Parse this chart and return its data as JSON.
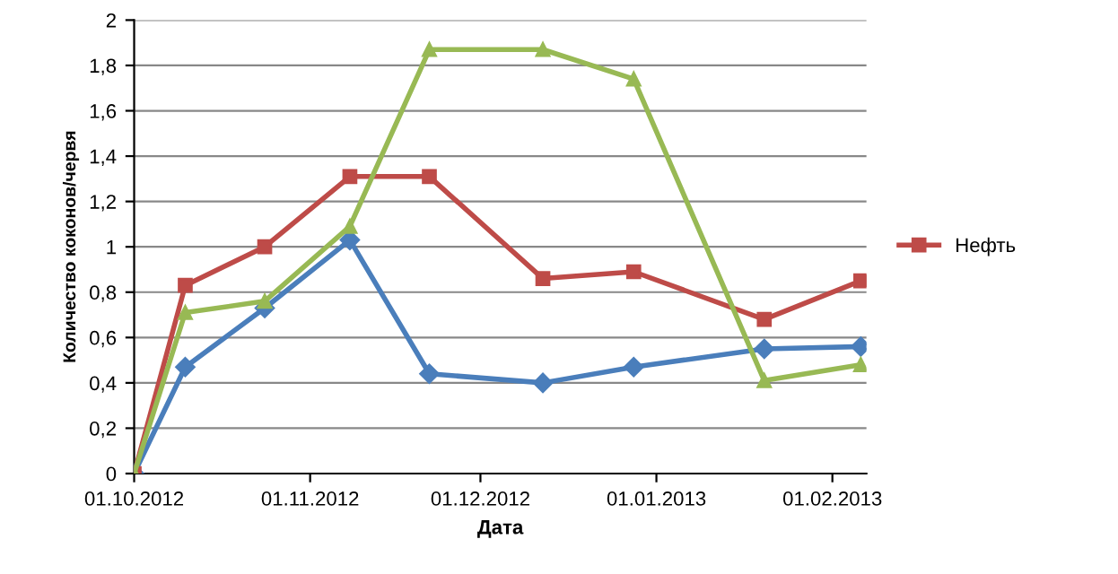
{
  "chart_data": {
    "type": "line",
    "xlabel": "Дата",
    "ylabel": "Количество коконов/червя",
    "x": [
      "2012-10-01",
      "2012-10-10",
      "2012-10-24",
      "2012-11-08",
      "2012-11-22",
      "2012-12-12",
      "2012-12-28",
      "2013-01-20",
      "2013-02-06"
    ],
    "series": [
      {
        "color": "#4a7ebb",
        "marker": "diamond",
        "values": [
          0,
          0.47,
          0.73,
          1.03,
          0.44,
          0.4,
          0.47,
          0.55,
          0.56
        ]
      },
      {
        "name": "Нефть",
        "color": "#be4b48",
        "marker": "square",
        "values": [
          0,
          0.83,
          1.0,
          1.31,
          1.31,
          0.86,
          0.89,
          0.68,
          0.85
        ]
      },
      {
        "color": "#98b954",
        "marker": "triangle",
        "values": [
          0,
          0.71,
          0.76,
          1.09,
          1.87,
          1.87,
          1.74,
          0.41,
          0.48
        ]
      }
    ],
    "xlim": [
      "2012-10-01",
      "2013-02-07"
    ],
    "xticks": [
      {
        "value": "2012-10-01",
        "label": "01.10.2012"
      },
      {
        "value": "2012-11-01",
        "label": "01.11.2012"
      },
      {
        "value": "2012-12-01",
        "label": "01.12.2012"
      },
      {
        "value": "2013-01-01",
        "label": "01.01.2013"
      },
      {
        "value": "2013-02-01",
        "label": "01.02.2013"
      }
    ],
    "ylim": [
      0,
      2
    ],
    "yticks": [
      0,
      {
        "value": 0.2,
        "label": "0,2"
      },
      {
        "value": 0.4,
        "label": "0,4"
      },
      {
        "value": 0.6,
        "label": "0,6"
      },
      {
        "value": 0.8,
        "label": "0,8"
      },
      1,
      {
        "value": 1.2,
        "label": "1,2"
      },
      {
        "value": 1.4,
        "label": "1,4"
      },
      {
        "value": 1.6,
        "label": "1,6"
      },
      {
        "value": 1.8,
        "label": "1,8"
      },
      2
    ],
    "grid": "y",
    "legend": "right",
    "line_style": "solid"
  }
}
